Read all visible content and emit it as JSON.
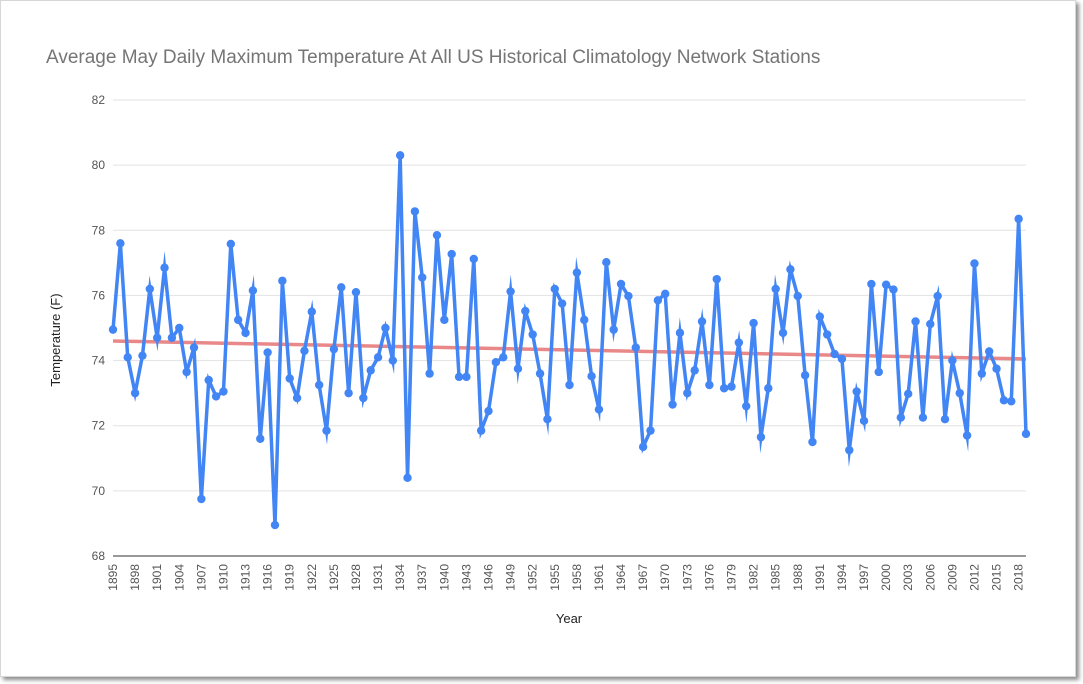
{
  "chart_data": {
    "type": "line",
    "title": "Average May Daily Maximum Temperature At All US Historical Climatology Network Stations",
    "xlabel": "Year",
    "ylabel": "Temperature (F)",
    "xlim": [
      1895,
      2019
    ],
    "ylim": [
      68,
      82
    ],
    "yticks": [
      68,
      70,
      72,
      74,
      76,
      78,
      80,
      82
    ],
    "xtick_labels": [
      "1895",
      "1898",
      "1901",
      "1904",
      "1907",
      "1910",
      "1913",
      "1916",
      "1919",
      "1922",
      "1925",
      "1928",
      "1931",
      "1934",
      "1937",
      "1940",
      "1943",
      "1946",
      "1949",
      "1952",
      "1955",
      "1958",
      "1961",
      "1964",
      "1967",
      "1970",
      "1973",
      "1976",
      "1979",
      "1982",
      "1985",
      "1988",
      "1991",
      "1994",
      "1997",
      "2000",
      "2003",
      "2006",
      "2009",
      "2012",
      "2015",
      "2018"
    ],
    "grid": true,
    "series": [
      {
        "color": "#4285f4",
        "x_start": 1895,
        "values": [
          74.95,
          77.6,
          74.1,
          73.0,
          74.15,
          76.2,
          74.7,
          76.85,
          74.7,
          75.0,
          73.65,
          74.4,
          69.75,
          73.4,
          72.9,
          73.05,
          77.58,
          75.25,
          74.85,
          76.15,
          71.6,
          74.25,
          68.95,
          76.45,
          73.45,
          72.85,
          74.3,
          75.5,
          73.25,
          71.85,
          74.35,
          76.25,
          73.0,
          76.1,
          72.85,
          73.7,
          74.1,
          75.0,
          74.0,
          80.3,
          70.4,
          78.58,
          76.55,
          73.6,
          77.85,
          75.25,
          77.27,
          73.5,
          73.5,
          77.12,
          71.85,
          72.45,
          73.95,
          74.1,
          76.12,
          73.75,
          75.52,
          74.8,
          73.6,
          72.2,
          76.2,
          75.75,
          73.25,
          76.7,
          75.25,
          73.52,
          72.5,
          77.02,
          74.95,
          76.35,
          75.98,
          74.4,
          71.35,
          71.85,
          75.85,
          76.05,
          72.65,
          74.85,
          73.0,
          73.7,
          75.2,
          73.25,
          76.5,
          73.15,
          73.2,
          74.55,
          72.6,
          75.15,
          71.65,
          73.15,
          76.2,
          74.85,
          76.8,
          75.98,
          73.55,
          71.5,
          75.35,
          74.8,
          74.2,
          74.05,
          71.25,
          73.05,
          72.15,
          76.35,
          73.65,
          76.33,
          76.18,
          72.25,
          72.98,
          75.2,
          72.25,
          75.12,
          75.98,
          72.2,
          74.0,
          73.0,
          71.7,
          76.98,
          73.6,
          74.28,
          73.75,
          72.78,
          72.75,
          78.35,
          71.75
        ]
      },
      {
        "color": "#e57373",
        "type": "trend",
        "x": [
          1895,
          2019
        ],
        "values": [
          74.6,
          74.05
        ]
      }
    ]
  }
}
